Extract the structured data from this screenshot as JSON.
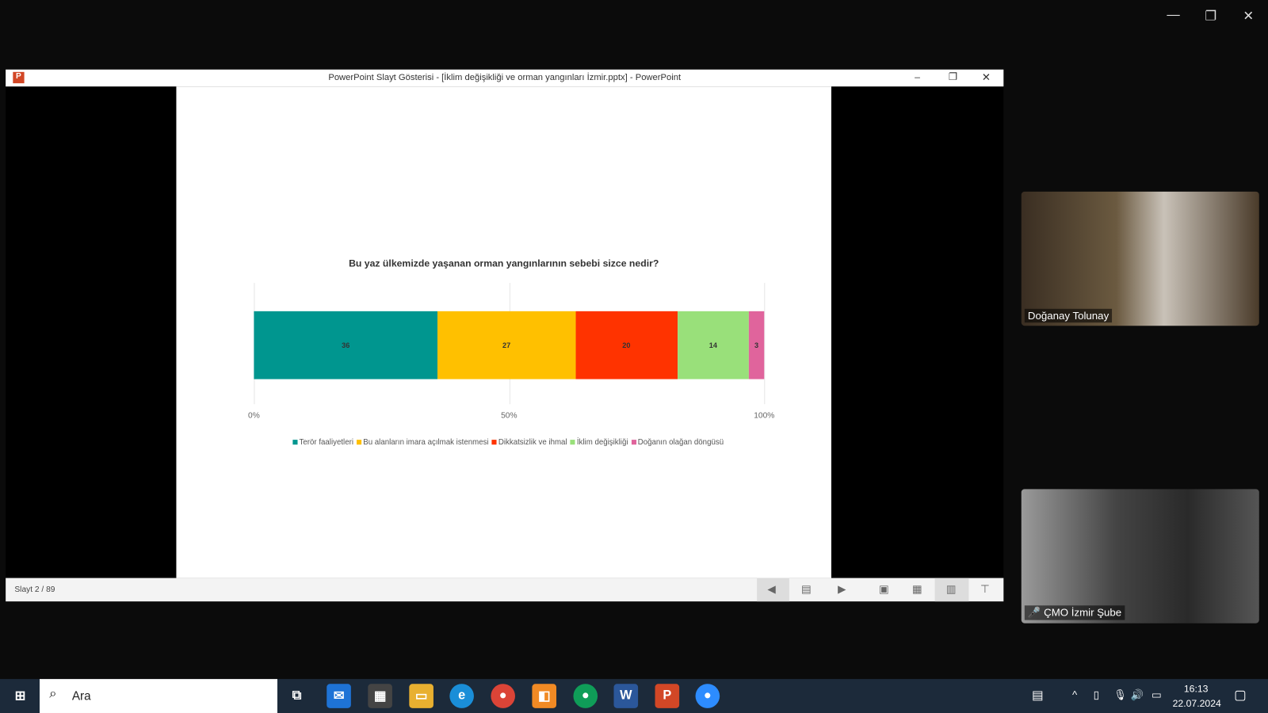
{
  "window": {
    "title": "PowerPoint Slayt Gösterisi - [İklim değişikliği ve orman yangınları İzmir.pptx] - PowerPoint"
  },
  "status": {
    "slide": "Slayt 2 / 89"
  },
  "chart_data": {
    "type": "bar",
    "orientation": "horizontal-stacked-100",
    "title": "Bu yaz ülkemizde yaşanan orman yangınlarının sebebi sizce nedir?",
    "xlim": [
      0,
      100
    ],
    "ticks": [
      "0%",
      "50%",
      "100%"
    ],
    "grid": true,
    "legend": "bottom",
    "series": [
      {
        "name": "Terör faaliyetleri",
        "value": 36,
        "color": "#00968f"
      },
      {
        "name": "Bu alanların imara açılmak istenmesi",
        "value": 27,
        "color": "#ffc000"
      },
      {
        "name": "Dikkatsizlik ve ihmal",
        "value": 20,
        "color": "#ff3300"
      },
      {
        "name": "İklim değişikliği",
        "value": 14,
        "color": "#99e07a"
      },
      {
        "name": "Doğanın olağan döngüsü",
        "value": 3,
        "color": "#e0649c"
      }
    ]
  },
  "participants": [
    {
      "name": "Doğanay Tolunay"
    },
    {
      "name": "ÇMO İzmir Şube",
      "muted": true
    }
  ],
  "taskbar": {
    "search": "Ara",
    "time": "16:13",
    "date": "22.07.2024"
  }
}
